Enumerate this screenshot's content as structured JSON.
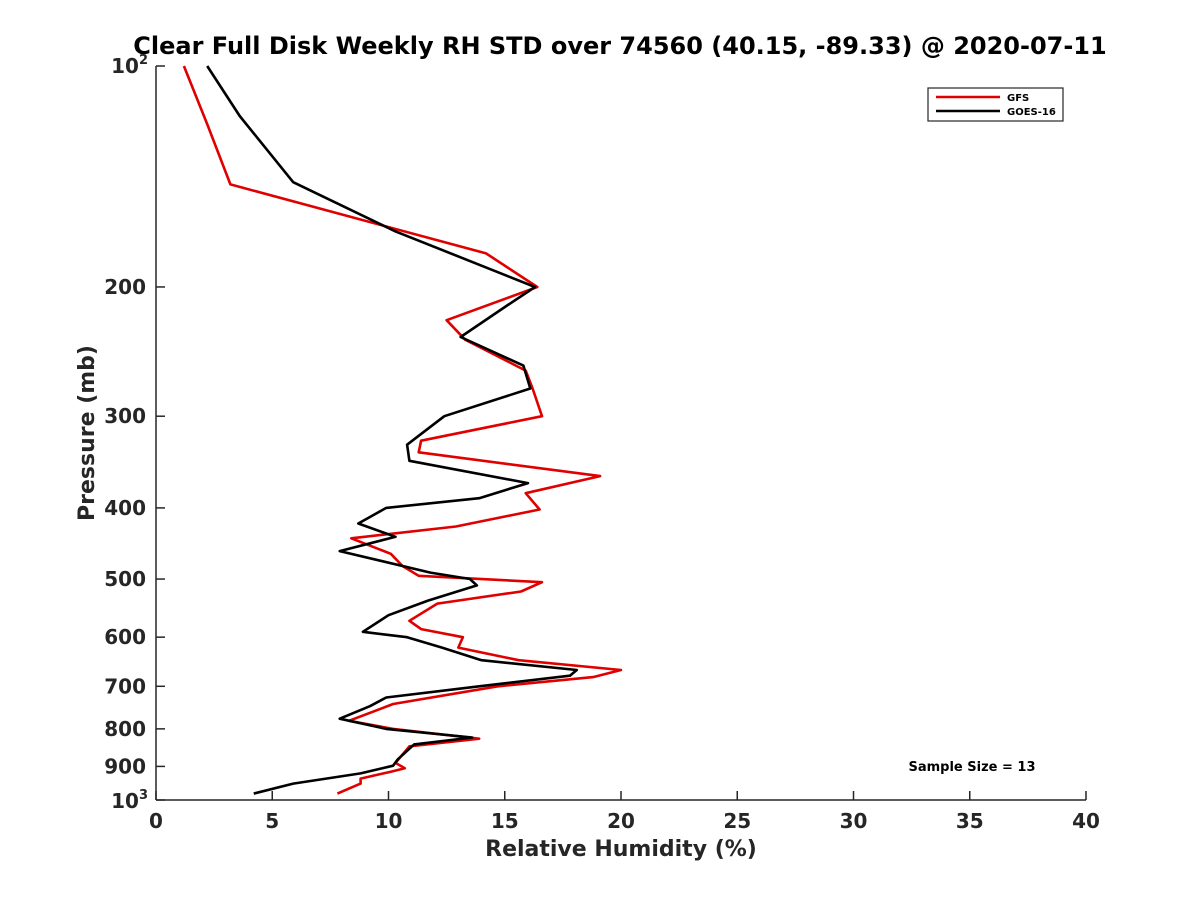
{
  "chart_data": {
    "type": "line",
    "title": "Clear Full Disk Weekly RH STD over 74560 (40.15, -89.33) @ 2020-07-11",
    "xlabel": "Relative Humidity (%)",
    "ylabel": "Pressure (mb)",
    "xlim": [
      0,
      40
    ],
    "ylim": [
      100,
      1000
    ],
    "yscale": "log",
    "y_reversed": true,
    "grid": false,
    "legend_position": "top-right",
    "x_ticks": [
      "0",
      "5",
      "10",
      "15",
      "20",
      "25",
      "30",
      "35",
      "40"
    ],
    "y_ticks": [
      {
        "value": 200,
        "label": "200"
      },
      {
        "value": 300,
        "label": "300"
      },
      {
        "value": 400,
        "label": "400"
      },
      {
        "value": 500,
        "label": "500"
      },
      {
        "value": 600,
        "label": "600"
      },
      {
        "value": 700,
        "label": "700"
      },
      {
        "value": 800,
        "label": "800"
      },
      {
        "value": 900,
        "label": "900"
      }
    ],
    "y_limit_labels": {
      "top": {
        "base": "10",
        "exp": "2"
      },
      "bottom": {
        "base": "10",
        "exp": "3"
      }
    },
    "annotation": "Sample Size = 13",
    "series": [
      {
        "name": "GFS",
        "color": "#e00000",
        "x": [
          1.2,
          2.2,
          3.2,
          14.2,
          16.4,
          12.5,
          13.3,
          15.9,
          16.2,
          16.6,
          11.4,
          11.3,
          19.1,
          15.9,
          16.5,
          12.9,
          8.4,
          10.1,
          10.6,
          11.3,
          16.6,
          15.7,
          12.1,
          10.9,
          11.4,
          13.2,
          13.0,
          15.6,
          20.0,
          18.8,
          14.7,
          10.2,
          8.3,
          10.2,
          13.9,
          10.9,
          10.3,
          10.7,
          10.1,
          8.8,
          8.8,
          7.8
        ],
        "y": [
          100,
          120,
          145,
          180,
          200,
          222,
          236,
          260,
          275,
          300,
          324,
          336,
          362,
          382,
          402,
          424,
          440,
          462,
          480,
          495,
          505,
          520,
          540,
          570,
          585,
          600,
          620,
          645,
          665,
          680,
          700,
          740,
          780,
          800,
          825,
          845,
          890,
          905,
          915,
          935,
          950,
          980
        ]
      },
      {
        "name": "GOES-16",
        "color": "#000000",
        "x": [
          2.2,
          3.6,
          5.9,
          10.3,
          16.3,
          15.1,
          13.1,
          15.8,
          16.1,
          12.4,
          10.8,
          10.9,
          16.0,
          13.9,
          9.9,
          8.7,
          10.3,
          7.9,
          11.8,
          13.5,
          13.8,
          11.7,
          10.0,
          8.9,
          10.8,
          12.3,
          14.0,
          18.1,
          17.8,
          13.9,
          9.9,
          9.2,
          7.9,
          9.9,
          13.6,
          11.1,
          10.4,
          10.2,
          8.8,
          5.9,
          4.2
        ],
        "y": [
          100,
          117,
          144,
          168,
          200,
          212,
          234,
          256,
          275,
          300,
          328,
          345,
          370,
          388,
          400,
          420,
          438,
          458,
          490,
          500,
          510,
          535,
          560,
          590,
          600,
          620,
          645,
          665,
          677,
          700,
          725,
          745,
          775,
          800,
          822,
          840,
          880,
          898,
          920,
          950,
          980
        ]
      }
    ]
  }
}
